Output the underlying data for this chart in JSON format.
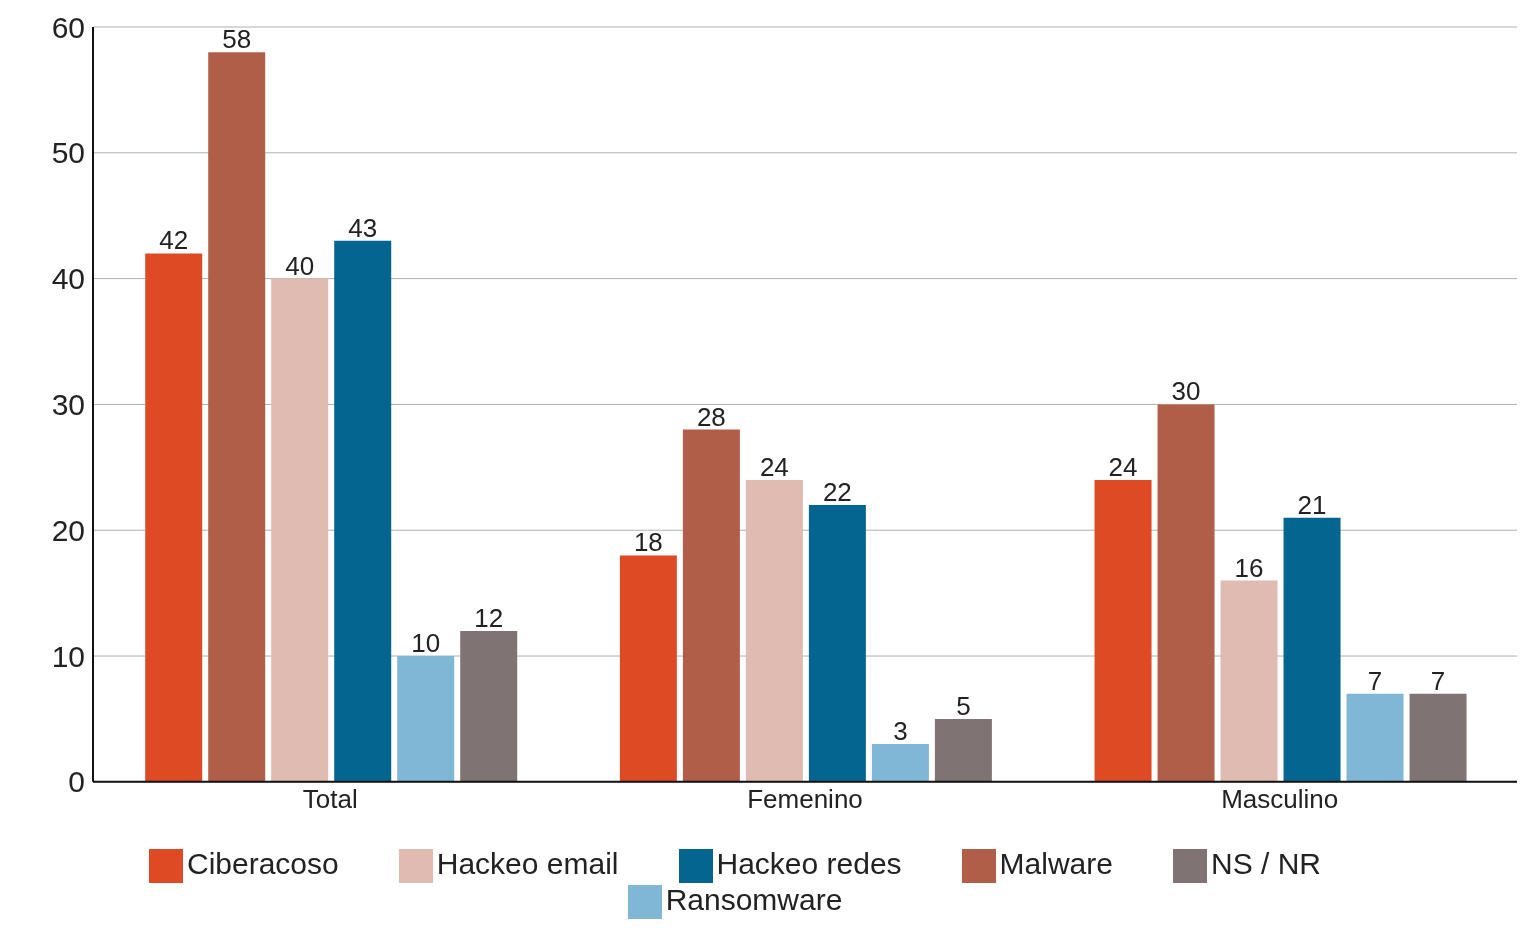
{
  "chart_data": {
    "type": "bar",
    "categories": [
      "Total",
      "Femenino",
      "Masculino"
    ],
    "series": [
      {
        "name": "Ciberacoso",
        "color": "#de4a23",
        "values": [
          42,
          18,
          24
        ]
      },
      {
        "name": "Malware",
        "color": "#b05e47",
        "values": [
          58,
          28,
          30
        ]
      },
      {
        "name": "Hackeo email",
        "color": "#dfbbb1",
        "values": [
          40,
          24,
          16
        ]
      },
      {
        "name": "Hackeo redes",
        "color": "#056591",
        "values": [
          43,
          22,
          21
        ]
      },
      {
        "name": "Ransomware",
        "color": "#80b7d6",
        "values": [
          10,
          3,
          7
        ]
      },
      {
        "name": "NS / NR",
        "color": "#807373",
        "values": [
          12,
          5,
          7
        ]
      }
    ],
    "ylim": [
      0,
      60
    ],
    "yticks": [
      0,
      10,
      20,
      30,
      40,
      50,
      60
    ],
    "grid": "y",
    "legend": "bottom",
    "data_labels": true
  }
}
